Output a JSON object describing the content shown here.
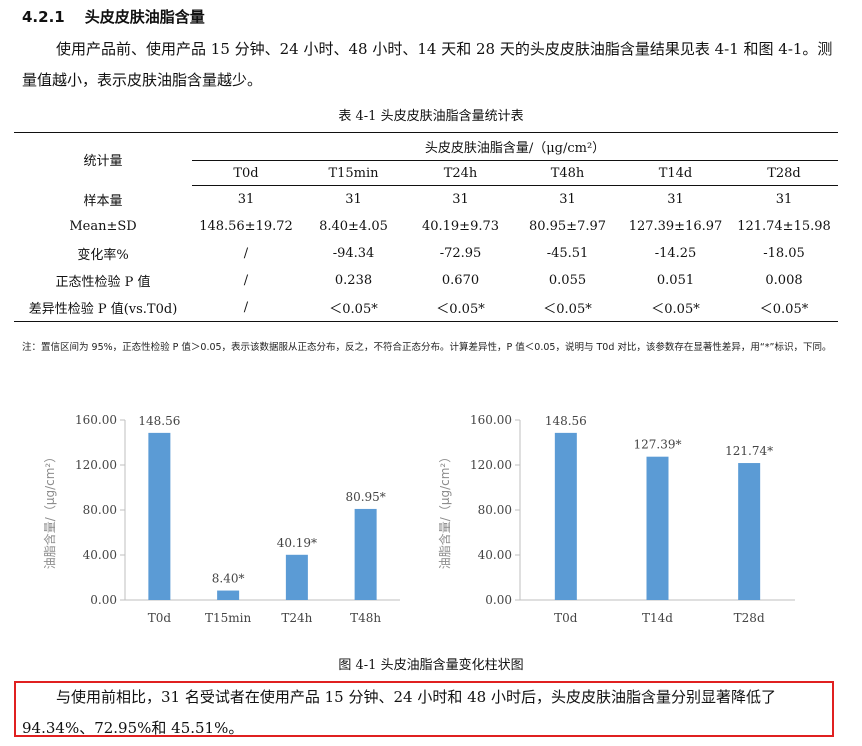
{
  "heading": {
    "number": "4.2.1",
    "title": "头皮皮肤油脂含量"
  },
  "intro_text": "使用产品前、使用产品 15 分钟、24 小时、48 小时、14 天和 28 天的头皮皮肤油脂含量结果见表 4-1 和图 4-1。测量值越小，表示皮肤油脂含量越少。",
  "table_caption": "表 4-1 头皮皮肤油脂含量统计表",
  "table": {
    "stat_header": "统计量",
    "group_header": "头皮皮肤油脂含量/（μg/cm²）",
    "columns": [
      "T0d",
      "T15min",
      "T24h",
      "T48h",
      "T14d",
      "T28d"
    ],
    "rows": [
      {
        "label": "样本量",
        "values": [
          "31",
          "31",
          "31",
          "31",
          "31",
          "31"
        ]
      },
      {
        "label": "Mean±SD",
        "values": [
          "148.56±19.72",
          "8.40±4.05",
          "40.19±9.73",
          "80.95±7.97",
          "127.39±16.97",
          "121.74±15.98"
        ]
      },
      {
        "label": "变化率%",
        "values": [
          "/",
          "-94.34",
          "-72.95",
          "-45.51",
          "-14.25",
          "-18.05"
        ]
      },
      {
        "label": "正态性检验 P 值",
        "values": [
          "/",
          "0.238",
          "0.670",
          "0.055",
          "0.051",
          "0.008"
        ]
      },
      {
        "label": "差异性检验 P 值(vs.T0d)",
        "values": [
          "/",
          "＜0.05*",
          "＜0.05*",
          "＜0.05*",
          "＜0.05*",
          "＜0.05*"
        ]
      }
    ]
  },
  "note_text": "注：置信区间为 95%，正态性检验 P 值＞0.05，表示该数据服从正态分布，反之，不符合正态分布。计算差异性，P 值＜0.05，说明与 T0d 对比，该参数存在显著性差异，用“*”标识，下同。",
  "figure_caption": "图 4-1 头皮油脂含量变化柱状图",
  "conclusion_text": "与使用前相比，31 名受试者在使用产品 15 分钟、24 小时和 48 小时后，头皮皮肤油脂含量分别显著降低了 94.34%、72.95%和 45.51%。",
  "colors": {
    "bar": "#5b9bd5",
    "highlight_border": "#e02020"
  },
  "chart_data": [
    {
      "type": "bar",
      "categories": [
        "T0d",
        "T15min",
        "T24h",
        "T48h"
      ],
      "values": [
        148.56,
        8.4,
        40.19,
        80.95
      ],
      "data_labels": [
        "148.56",
        "8.40*",
        "40.19*",
        "80.95*"
      ],
      "ylabel": "油脂含量/（μg/cm²）",
      "yticks": [
        "0.00",
        "40.00",
        "80.00",
        "120.00",
        "160.00"
      ],
      "ylim": [
        0,
        160
      ],
      "grid": false
    },
    {
      "type": "bar",
      "categories": [
        "T0d",
        "T14d",
        "T28d"
      ],
      "values": [
        148.56,
        127.39,
        121.74
      ],
      "data_labels": [
        "148.56",
        "127.39*",
        "121.74*"
      ],
      "ylabel": "油脂含量/（μg/cm²）",
      "yticks": [
        "0.00",
        "40.00",
        "80.00",
        "120.00",
        "160.00"
      ],
      "ylim": [
        0,
        160
      ],
      "grid": false
    }
  ]
}
